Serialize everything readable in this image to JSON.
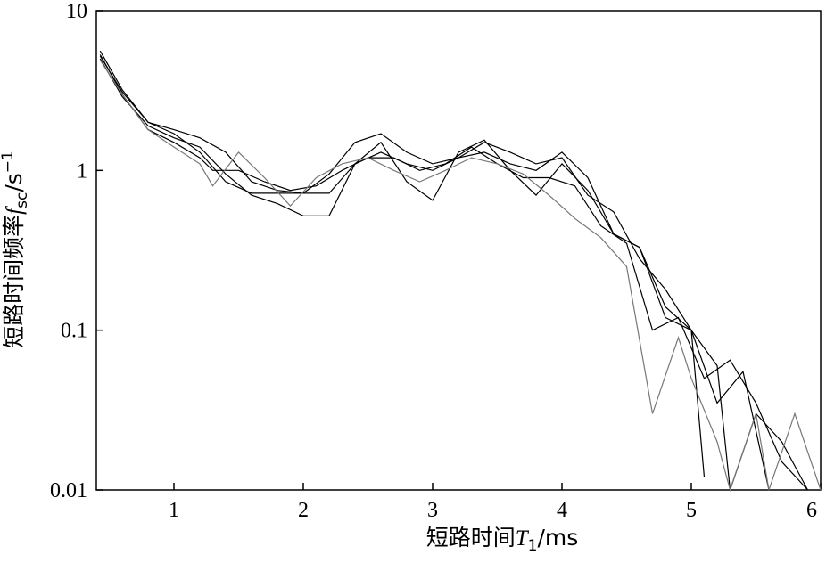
{
  "chart_data": {
    "type": "line",
    "xlabel": {
      "prefix": "短路时间",
      "symbol": "T",
      "subscript": "1",
      "unit": "/ms"
    },
    "ylabel": {
      "prefix": "短路时间频率",
      "symbol": "f",
      "subscript": "sc",
      "unit": "/s",
      "superscript": "−1"
    },
    "x_ticks": [
      "1",
      "2",
      "3",
      "4",
      "5",
      "6"
    ],
    "y_ticks": [
      "0.01",
      "0.1",
      "1",
      "10"
    ],
    "xlim": [
      0.4,
      6.0
    ],
    "ylim": [
      0.01,
      10
    ],
    "yscale": "log",
    "grid": false,
    "series": [
      {
        "color": "#000000",
        "x": [
          0.43,
          0.6,
          0.8,
          1.0,
          1.2,
          1.3,
          1.5,
          1.7,
          1.9,
          2.1,
          2.3,
          2.5,
          2.7,
          2.9,
          3.1,
          3.3,
          3.5,
          3.7,
          3.9,
          4.1,
          4.3,
          4.5,
          4.7,
          4.9,
          5.1,
          5.3,
          5.5,
          5.7,
          5.9
        ],
        "y": [
          5.3,
          3.0,
          1.8,
          1.5,
          1.2,
          1.0,
          1.0,
          0.85,
          0.75,
          0.8,
          1.0,
          1.2,
          1.2,
          1.0,
          1.1,
          1.4,
          1.1,
          0.9,
          0.9,
          0.8,
          0.45,
          0.35,
          0.1,
          0.12,
          0.05,
          0.065,
          0.035,
          0.015,
          0.01
        ]
      },
      {
        "color": "#000000",
        "x": [
          0.43,
          0.6,
          0.8,
          1.0,
          1.2,
          1.4,
          1.6,
          1.8,
          2.0,
          2.2,
          2.4,
          2.6,
          2.8,
          3.0,
          3.2,
          3.4,
          3.6,
          3.8,
          4.0,
          4.2,
          4.4,
          4.6,
          4.8,
          5.0,
          5.1
        ],
        "y": [
          5.6,
          3.2,
          2.0,
          1.8,
          1.6,
          1.3,
          0.85,
          0.75,
          0.72,
          0.95,
          1.5,
          1.7,
          1.3,
          1.1,
          1.2,
          1.3,
          1.1,
          1.0,
          1.3,
          0.9,
          0.4,
          0.33,
          0.14,
          0.1,
          0.012
        ]
      },
      {
        "color": "#000000",
        "x": [
          0.43,
          0.6,
          0.8,
          1.0,
          1.2,
          1.4,
          1.6,
          1.8,
          2.0,
          2.2,
          2.4,
          2.6,
          2.8,
          3.0,
          3.2,
          3.4,
          3.6,
          3.8,
          4.0,
          4.2,
          4.4,
          4.6,
          4.8,
          5.0,
          5.2,
          5.4,
          5.6
        ],
        "y": [
          5.0,
          2.9,
          1.9,
          1.6,
          1.4,
          0.95,
          0.7,
          0.62,
          0.52,
          0.52,
          1.1,
          1.5,
          0.85,
          0.65,
          1.3,
          1.55,
          1.0,
          0.7,
          1.1,
          0.75,
          0.4,
          0.33,
          0.12,
          0.1,
          0.035,
          0.055,
          0.01
        ]
      },
      {
        "color": "#000000",
        "x": [
          0.43,
          0.6,
          0.8,
          1.0,
          1.2,
          1.4,
          1.6,
          1.8,
          2.0,
          2.2,
          2.4,
          2.6,
          2.8,
          3.0,
          3.2,
          3.4,
          3.6,
          3.8,
          4.0,
          4.2,
          4.4,
          4.6,
          4.8,
          5.0,
          5.2,
          5.3,
          5.5,
          5.7,
          5.9
        ],
        "y": [
          5.2,
          3.1,
          2.0,
          1.7,
          1.3,
          0.85,
          0.72,
          0.72,
          0.72,
          0.72,
          1.1,
          1.3,
          1.1,
          1.0,
          1.2,
          1.5,
          1.3,
          1.1,
          1.2,
          0.7,
          0.55,
          0.28,
          0.18,
          0.1,
          0.06,
          0.01,
          0.03,
          0.02,
          0.01
        ]
      },
      {
        "color": "#777777",
        "x": [
          0.43,
          0.6,
          0.8,
          1.0,
          1.2,
          1.3,
          1.5,
          1.7,
          1.9,
          2.1,
          2.3,
          2.5,
          2.7,
          2.9,
          3.1,
          3.3,
          3.5,
          3.7,
          3.9,
          4.1,
          4.3,
          4.5,
          4.7,
          4.9,
          5.0,
          5.2,
          5.3,
          5.5,
          5.6,
          5.8,
          6.0
        ],
        "y": [
          4.9,
          3.0,
          1.8,
          1.4,
          1.1,
          0.8,
          1.3,
          0.9,
          0.6,
          0.9,
          1.1,
          1.2,
          1.0,
          0.85,
          1.0,
          1.2,
          1.1,
          0.95,
          0.7,
          0.5,
          0.38,
          0.25,
          0.03,
          0.09,
          0.05,
          0.02,
          0.01,
          0.03,
          0.01,
          0.03,
          0.01
        ]
      }
    ]
  }
}
